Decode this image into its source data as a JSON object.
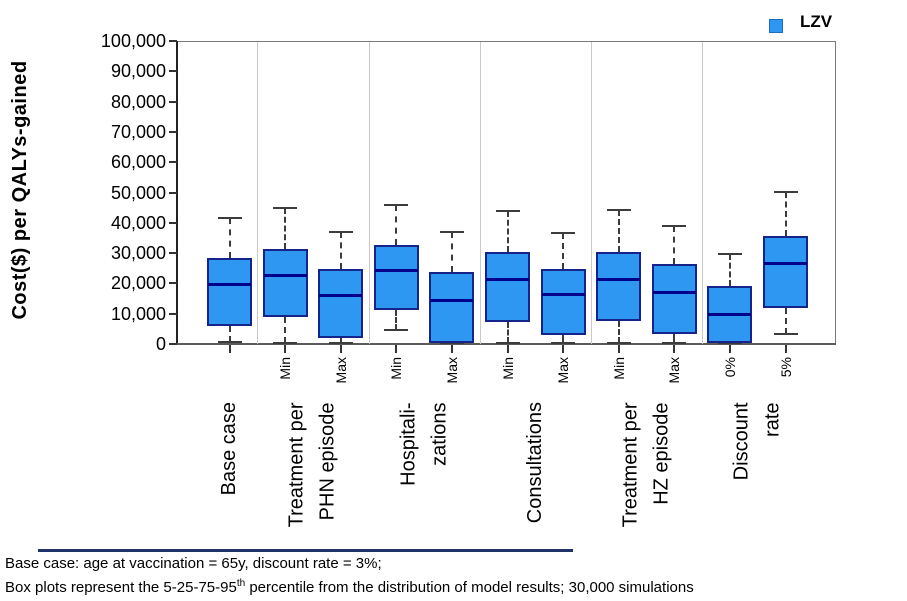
{
  "legend": {
    "label": "LZV",
    "swatch_color": "#2e97f2"
  },
  "y_axis_title": "Cost($) per QALYs-gained",
  "footnotes": {
    "line1": "Base case: age at vaccination = 65y, discount rate = 3%;",
    "line2_pre": "Box plots represent the 5-25-75-95",
    "line2_sup": "th",
    "line2_post": "  percentile from the distribution of model results; 30,000 simulations"
  },
  "chart_data": {
    "type": "box",
    "title": "",
    "xlabel": "",
    "ylabel": "Cost($) per QALYs-gained",
    "ylim": [
      0,
      100000
    ],
    "ytick_labels": [
      "0",
      "10,000",
      "20,000",
      "30,000",
      "40,000",
      "50,000",
      "60,000",
      "70,000",
      "80,000",
      "90,000",
      "100,000"
    ],
    "grid": "vertical-group-separators-only",
    "legend_position": "top-right",
    "series_name": "LZV",
    "percentile_scheme": "5-25-75-95",
    "groups": [
      {
        "label": "Base case",
        "boxes": [
          {
            "sublabel": "",
            "p5": 500,
            "q1": 5800,
            "median": 19700,
            "q3": 28300,
            "p95": 41500
          }
        ]
      },
      {
        "label": "Treatment per\nPHN episode",
        "boxes": [
          {
            "sublabel": "Min",
            "p5": 300,
            "q1": 8800,
            "median": 22600,
            "q3": 31200,
            "p95": 45000
          },
          {
            "sublabel": "Max",
            "p5": 200,
            "q1": 2000,
            "median": 16000,
            "q3": 24800,
            "p95": 37000
          }
        ]
      },
      {
        "label": "Hospitali-\nzations",
        "boxes": [
          {
            "sublabel": "Min",
            "p5": 4700,
            "q1": 11200,
            "median": 24200,
            "q3": 32600,
            "p95": 46000
          },
          {
            "sublabel": "Max",
            "p5": 0,
            "q1": 200,
            "median": 14300,
            "q3": 23700,
            "p95": 36800
          }
        ]
      },
      {
        "label": "Consultations",
        "boxes": [
          {
            "sublabel": "Min",
            "p5": 400,
            "q1": 7200,
            "median": 21300,
            "q3": 30300,
            "p95": 44000
          },
          {
            "sublabel": "Max",
            "p5": 300,
            "q1": 3100,
            "median": 16300,
            "q3": 24600,
            "p95": 36600
          }
        ]
      },
      {
        "label": "Treatment per\nHZ episode",
        "boxes": [
          {
            "sublabel": "Min",
            "p5": 400,
            "q1": 7500,
            "median": 21400,
            "q3": 30200,
            "p95": 44200
          },
          {
            "sublabel": "Max",
            "p5": 300,
            "q1": 3400,
            "median": 17100,
            "q3": 26500,
            "p95": 39000
          }
        ]
      },
      {
        "label": "Discount\nrate",
        "boxes": [
          {
            "sublabel": "0%",
            "p5": 100,
            "q1": 300,
            "median": 9800,
            "q3": 19000,
            "p95": 29600
          },
          {
            "sublabel": "5%",
            "p5": 3400,
            "q1": 11900,
            "median": 26600,
            "q3": 35500,
            "p95": 50300
          }
        ]
      }
    ],
    "colors": {
      "box_fill": "#2e97f2",
      "box_border": "#15238b",
      "median": "#00008b",
      "whisker": "#3c3c3c"
    }
  }
}
